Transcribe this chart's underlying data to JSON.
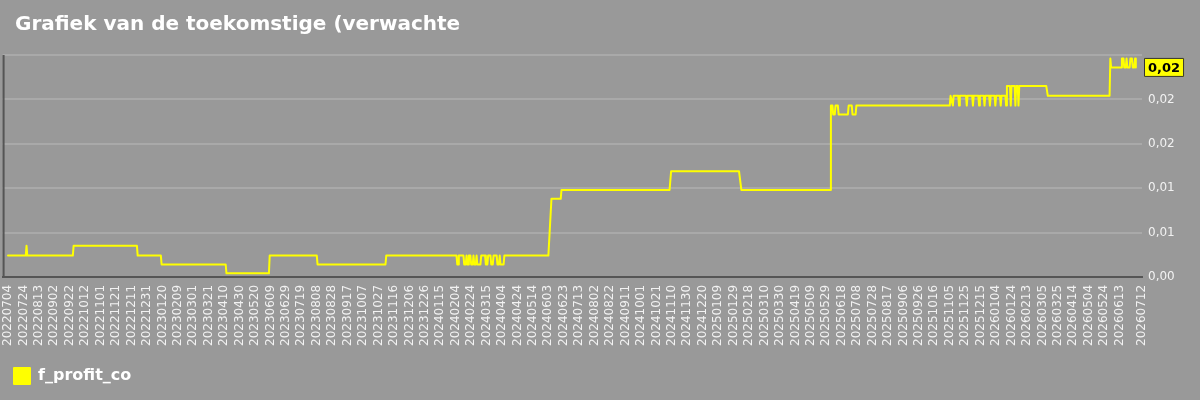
{
  "chart_data": {
    "type": "line",
    "title": "Grafiek van de toekomstige (verwachte",
    "series": [
      {
        "name": "f_profit_co",
        "color": "#ffff00",
        "x": [
          "2022-07-04",
          "2022-07-27",
          "2022-07-28",
          "2022-07-29",
          "2022-09-26",
          "2022-09-27",
          "2022-12-18",
          "2022-12-19",
          "2023-01-18",
          "2023-01-19",
          "2023-04-12",
          "2023-04-13",
          "2023-06-07",
          "2023-06-08",
          "2023-08-08",
          "2023-08-09",
          "2023-11-05",
          "2023-11-06",
          "2024-02-05",
          "2024-02-06",
          "2024-02-07",
          "2024-02-08",
          "2024-02-14",
          "2024-02-15",
          "2024-02-17",
          "2024-02-18",
          "2024-02-19",
          "2024-02-20",
          "2024-02-21",
          "2024-02-23",
          "2024-02-24",
          "2024-02-26",
          "2024-02-27",
          "2024-02-28",
          "2024-03-01",
          "2024-03-02",
          "2024-03-03",
          "2024-03-07",
          "2024-03-08",
          "2024-03-13",
          "2024-03-14",
          "2024-03-16",
          "2024-03-17",
          "2024-03-20",
          "2024-03-21",
          "2024-03-23",
          "2024-03-24",
          "2024-03-28",
          "2024-03-29",
          "2024-03-31",
          "2024-04-01",
          "2024-04-02",
          "2024-04-06",
          "2024-04-07",
          "2024-06-03",
          "2024-06-07",
          "2024-06-19",
          "2024-06-20",
          "2024-11-07",
          "2024-11-09",
          "2025-02-05",
          "2025-02-08",
          "2025-06-03",
          "2025-06-04",
          "2025-06-06",
          "2025-06-07",
          "2025-06-09",
          "2025-06-10",
          "2025-06-13",
          "2025-06-14",
          "2025-06-26",
          "2025-06-27",
          "2025-07-01",
          "2025-07-02",
          "2025-07-06",
          "2025-07-07",
          "2025-11-05",
          "2025-11-06",
          "2025-11-09",
          "2025-11-10",
          "2025-11-16",
          "2025-11-17",
          "2025-11-18",
          "2025-11-26",
          "2025-11-27",
          "2025-11-28",
          "2025-12-04",
          "2025-12-05",
          "2025-12-06",
          "2025-12-12",
          "2025-12-13",
          "2025-12-14",
          "2025-12-19",
          "2025-12-20",
          "2025-12-21",
          "2025-12-26",
          "2025-12-27",
          "2025-12-28",
          "2026-01-02",
          "2026-01-03",
          "2026-01-04",
          "2026-01-09",
          "2026-01-10",
          "2026-01-11",
          "2026-01-16",
          "2026-01-17",
          "2026-01-18",
          "2026-01-22",
          "2026-01-23",
          "2026-01-24",
          "2026-01-28",
          "2026-01-29",
          "2026-01-30",
          "2026-02-01",
          "2026-02-02",
          "2026-02-03",
          "2026-03-10",
          "2026-03-12",
          "2026-05-31",
          "2026-06-01",
          "2026-06-02",
          "2026-06-15",
          "2026-06-16",
          "2026-06-18",
          "2026-06-19",
          "2026-06-21",
          "2026-06-22",
          "2026-06-23",
          "2026-06-26",
          "2026-06-27",
          "2026-06-29",
          "2026-06-30",
          "2026-07-02",
          "2026-07-03",
          "2026-07-04"
        ],
        "values": [
          0.0024,
          0.0024,
          0.0035,
          0.0024,
          0.0024,
          0.0035,
          0.0035,
          0.0024,
          0.0024,
          0.0014,
          0.0014,
          0.0004,
          0.0004,
          0.0024,
          0.0024,
          0.0014,
          0.0014,
          0.0024,
          0.0024,
          0.0014,
          0.0014,
          0.0024,
          0.0024,
          0.0014,
          0.0014,
          0.0024,
          0.0014,
          0.0014,
          0.0024,
          0.0024,
          0.0014,
          0.0014,
          0.0024,
          0.0014,
          0.0014,
          0.0024,
          0.0014,
          0.0014,
          0.0024,
          0.0024,
          0.0014,
          0.0014,
          0.0024,
          0.0024,
          0.0014,
          0.0014,
          0.0024,
          0.0024,
          0.0014,
          0.0014,
          0.0024,
          0.0014,
          0.0014,
          0.0024,
          0.0024,
          0.0088,
          0.0088,
          0.0098,
          0.0098,
          0.0119,
          0.0119,
          0.0098,
          0.0098,
          0.0193,
          0.0193,
          0.0183,
          0.0183,
          0.0193,
          0.0193,
          0.0183,
          0.0183,
          0.0193,
          0.0193,
          0.0183,
          0.0183,
          0.0193,
          0.0193,
          0.0204,
          0.0193,
          0.0204,
          0.0204,
          0.0193,
          0.0204,
          0.0204,
          0.0193,
          0.0204,
          0.0204,
          0.0193,
          0.0204,
          0.0204,
          0.0193,
          0.0204,
          0.0204,
          0.0193,
          0.0204,
          0.0204,
          0.0193,
          0.0204,
          0.0204,
          0.0193,
          0.0204,
          0.0204,
          0.0193,
          0.0204,
          0.0204,
          0.0193,
          0.0215,
          0.0215,
          0.0193,
          0.0215,
          0.0215,
          0.0193,
          0.0215,
          0.0215,
          0.0193,
          0.0215,
          0.0215,
          0.0204,
          0.0204,
          0.0246,
          0.0236,
          0.0236,
          0.0246,
          0.0246,
          0.0236,
          0.0236,
          0.0246,
          0.0236,
          0.0236,
          0.0246,
          0.0246,
          0.0236,
          0.0236,
          0.0246,
          0.0236
        ]
      }
    ],
    "xlim": [
      "2022-06-27",
      "2026-07-12"
    ],
    "xticks": [
      {
        "value": "2022-07-04",
        "label": "20220704"
      },
      {
        "value": "2022-07-24",
        "label": "20220724"
      },
      {
        "value": "2022-08-13",
        "label": "20220813"
      },
      {
        "value": "2022-09-02",
        "label": "20220902"
      },
      {
        "value": "2022-09-22",
        "label": "20220922"
      },
      {
        "value": "2022-10-12",
        "label": "20221012"
      },
      {
        "value": "2022-11-01",
        "label": "20221101"
      },
      {
        "value": "2022-11-21",
        "label": "20221121"
      },
      {
        "value": "2022-12-11",
        "label": "20221211"
      },
      {
        "value": "2022-12-31",
        "label": "20221231"
      },
      {
        "value": "2023-01-20",
        "label": "20230120"
      },
      {
        "value": "2023-02-09",
        "label": "20230209"
      },
      {
        "value": "2023-03-01",
        "label": "20230301"
      },
      {
        "value": "2023-03-21",
        "label": "20230321"
      },
      {
        "value": "2023-04-10",
        "label": "20230410"
      },
      {
        "value": "2023-04-30",
        "label": "20230430"
      },
      {
        "value": "2023-05-20",
        "label": "20230520"
      },
      {
        "value": "2023-06-09",
        "label": "20230609"
      },
      {
        "value": "2023-06-29",
        "label": "20230629"
      },
      {
        "value": "2023-07-19",
        "label": "20230719"
      },
      {
        "value": "2023-08-08",
        "label": "20230808"
      },
      {
        "value": "2023-08-28",
        "label": "20230828"
      },
      {
        "value": "2023-09-17",
        "label": "20230917"
      },
      {
        "value": "2023-10-07",
        "label": "20231007"
      },
      {
        "value": "2023-10-27",
        "label": "20231027"
      },
      {
        "value": "2023-11-16",
        "label": "20231116"
      },
      {
        "value": "2023-12-06",
        "label": "20231206"
      },
      {
        "value": "2023-12-26",
        "label": "20231226"
      },
      {
        "value": "2024-01-15",
        "label": "20240115"
      },
      {
        "value": "2024-02-04",
        "label": "20240204"
      },
      {
        "value": "2024-02-24",
        "label": "20240224"
      },
      {
        "value": "2024-03-15",
        "label": "20240315"
      },
      {
        "value": "2024-04-04",
        "label": "20240404"
      },
      {
        "value": "2024-04-24",
        "label": "20240424"
      },
      {
        "value": "2024-05-14",
        "label": "20240514"
      },
      {
        "value": "2024-06-03",
        "label": "20240603"
      },
      {
        "value": "2024-06-23",
        "label": "20240623"
      },
      {
        "value": "2024-07-13",
        "label": "20240713"
      },
      {
        "value": "2024-08-02",
        "label": "20240802"
      },
      {
        "value": "2024-08-22",
        "label": "20240822"
      },
      {
        "value": "2024-09-11",
        "label": "20240911"
      },
      {
        "value": "2024-10-01",
        "label": "20241001"
      },
      {
        "value": "2024-10-21",
        "label": "20241021"
      },
      {
        "value": "2024-11-10",
        "label": "20241110"
      },
      {
        "value": "2024-11-30",
        "label": "20241130"
      },
      {
        "value": "2024-12-20",
        "label": "20241220"
      },
      {
        "value": "2025-01-09",
        "label": "20250109"
      },
      {
        "value": "2025-01-29",
        "label": "20250129"
      },
      {
        "value": "2025-02-18",
        "label": "20250218"
      },
      {
        "value": "2025-03-10",
        "label": "20250310"
      },
      {
        "value": "2025-03-30",
        "label": "20250330"
      },
      {
        "value": "2025-04-19",
        "label": "20250419"
      },
      {
        "value": "2025-05-09",
        "label": "20250509"
      },
      {
        "value": "2025-05-29",
        "label": "20250529"
      },
      {
        "value": "2025-06-18",
        "label": "20250618"
      },
      {
        "value": "2025-07-08",
        "label": "20250708"
      },
      {
        "value": "2025-07-28",
        "label": "20250728"
      },
      {
        "value": "2025-08-17",
        "label": "20250817"
      },
      {
        "value": "2025-09-06",
        "label": "20250906"
      },
      {
        "value": "2025-09-26",
        "label": "20250926"
      },
      {
        "value": "2025-10-16",
        "label": "20251016"
      },
      {
        "value": "2025-11-05",
        "label": "20251105"
      },
      {
        "value": "2025-11-25",
        "label": "20251125"
      },
      {
        "value": "2025-12-15",
        "label": "20251215"
      },
      {
        "value": "2026-01-04",
        "label": "20260104"
      },
      {
        "value": "2026-01-24",
        "label": "20260124"
      },
      {
        "value": "2026-02-13",
        "label": "20260213"
      },
      {
        "value": "2026-03-05",
        "label": "20260305"
      },
      {
        "value": "2026-03-25",
        "label": "20260325"
      },
      {
        "value": "2026-04-14",
        "label": "20260414"
      },
      {
        "value": "2026-05-04",
        "label": "20260504"
      },
      {
        "value": "2026-05-24",
        "label": "20260524"
      },
      {
        "value": "2026-06-13",
        "label": "20260613"
      },
      {
        "value": "2026-07-12",
        "label": "20260712"
      }
    ],
    "ylim": [
      0,
      0.025
    ],
    "yticks": [
      {
        "value": 0,
        "label": "0,00"
      },
      {
        "value": 0.005,
        "label": "0,01"
      },
      {
        "value": 0.01,
        "label": "0,01"
      },
      {
        "value": 0.015,
        "label": "0,02"
      },
      {
        "value": 0.02,
        "label": "0,02"
      },
      {
        "value": 0.025,
        "label": null
      }
    ],
    "grid": "y",
    "legend": "bottom left",
    "marker": "none",
    "line_style": "solid",
    "annotations": [
      {
        "text": "0,02",
        "x": "2026-07-04",
        "y": 0.0236
      }
    ]
  }
}
